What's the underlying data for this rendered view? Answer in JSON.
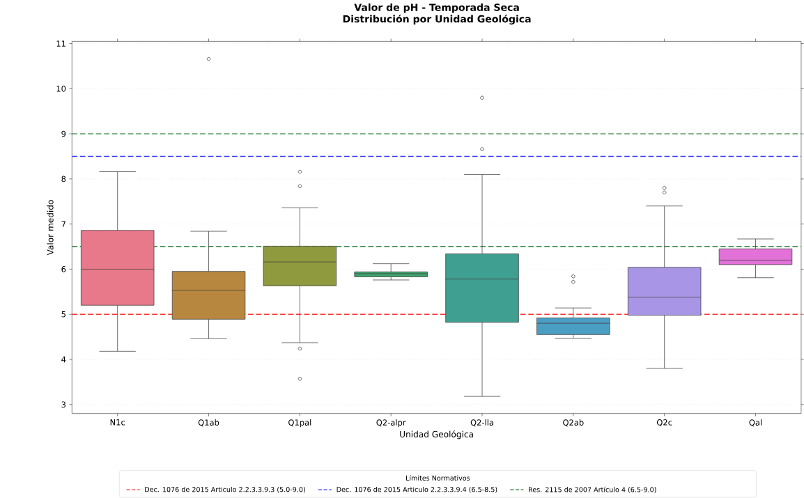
{
  "chart_data": {
    "type": "box",
    "title": "Valor de pH - Temporada Seca",
    "subtitle": "Distribución por Unidad Geológica",
    "xlabel": "Unidad Geológica",
    "ylabel": "Valor medido",
    "legend_title": "Límites Normativos",
    "categories": [
      "N1c",
      "Q1ab",
      "Q1pal",
      "Q2-alpr",
      "Q2-lla",
      "Q2ab",
      "Q2c",
      "Qal"
    ],
    "colors": [
      "#e8798a",
      "#b8873f",
      "#8f9a3f",
      "#3fa56f",
      "#3f9f91",
      "#4a9ec4",
      "#a995e6",
      "#e271d8"
    ],
    "boxes": [
      {
        "low": 4.18,
        "q1": 5.2,
        "median": 6.0,
        "q3": 6.86,
        "high": 8.16
      },
      {
        "low": 4.46,
        "q1": 4.89,
        "median": 5.53,
        "q3": 5.95,
        "high": 6.84,
        "outliers": [
          10.66
        ]
      },
      {
        "low": 4.37,
        "q1": 5.63,
        "median": 6.16,
        "q3": 6.51,
        "high": 7.36,
        "outliers": [
          8.16,
          7.84,
          4.24,
          3.57
        ]
      },
      {
        "low": 5.76,
        "q1": 5.83,
        "median": 5.9,
        "q3": 5.94,
        "high": 6.12
      },
      {
        "low": 3.18,
        "q1": 4.82,
        "median": 5.78,
        "q3": 6.34,
        "high": 8.1,
        "outliers": [
          9.8,
          8.66
        ]
      },
      {
        "low": 4.47,
        "q1": 4.55,
        "median": 4.8,
        "q3": 4.92,
        "high": 5.14,
        "outliers": [
          5.84,
          5.72
        ]
      },
      {
        "low": 3.8,
        "q1": 4.98,
        "median": 5.38,
        "q3": 6.04,
        "high": 7.4,
        "outliers": [
          7.8,
          7.7
        ]
      },
      {
        "low": 5.81,
        "q1": 6.1,
        "median": 6.2,
        "q3": 6.45,
        "high": 6.67
      }
    ],
    "ylim": [
      2.8,
      11.05
    ],
    "yticks": [
      3,
      4,
      5,
      6,
      7,
      8,
      9,
      10,
      11
    ],
    "grid": "y",
    "legend": "bottom",
    "ref_lines": [
      {
        "axis": "y",
        "value": 5.0,
        "label": "Dec. 1076 de 2015 Articulo 2.2.3.3.9.3 (5.0-9.0)",
        "color": "#ff3333",
        "line_style": "dashed"
      },
      {
        "axis": "y",
        "value": 8.5,
        "label": "Dec. 1076 de 2015 Articulo 2.2.3.3.9.4 (6.5-8.5)",
        "color": "#3333ff",
        "line_style": "dashed"
      },
      {
        "axis": "y",
        "value": 6.5,
        "label": "Res. 2115 de 2007 Artículo 4 (6.5-9.0)",
        "color": "#1f7a2e",
        "line_style": "dashed"
      },
      {
        "axis": "y",
        "value": 9.0,
        "color": "#1f7a2e",
        "line_style": "dashed"
      }
    ]
  }
}
